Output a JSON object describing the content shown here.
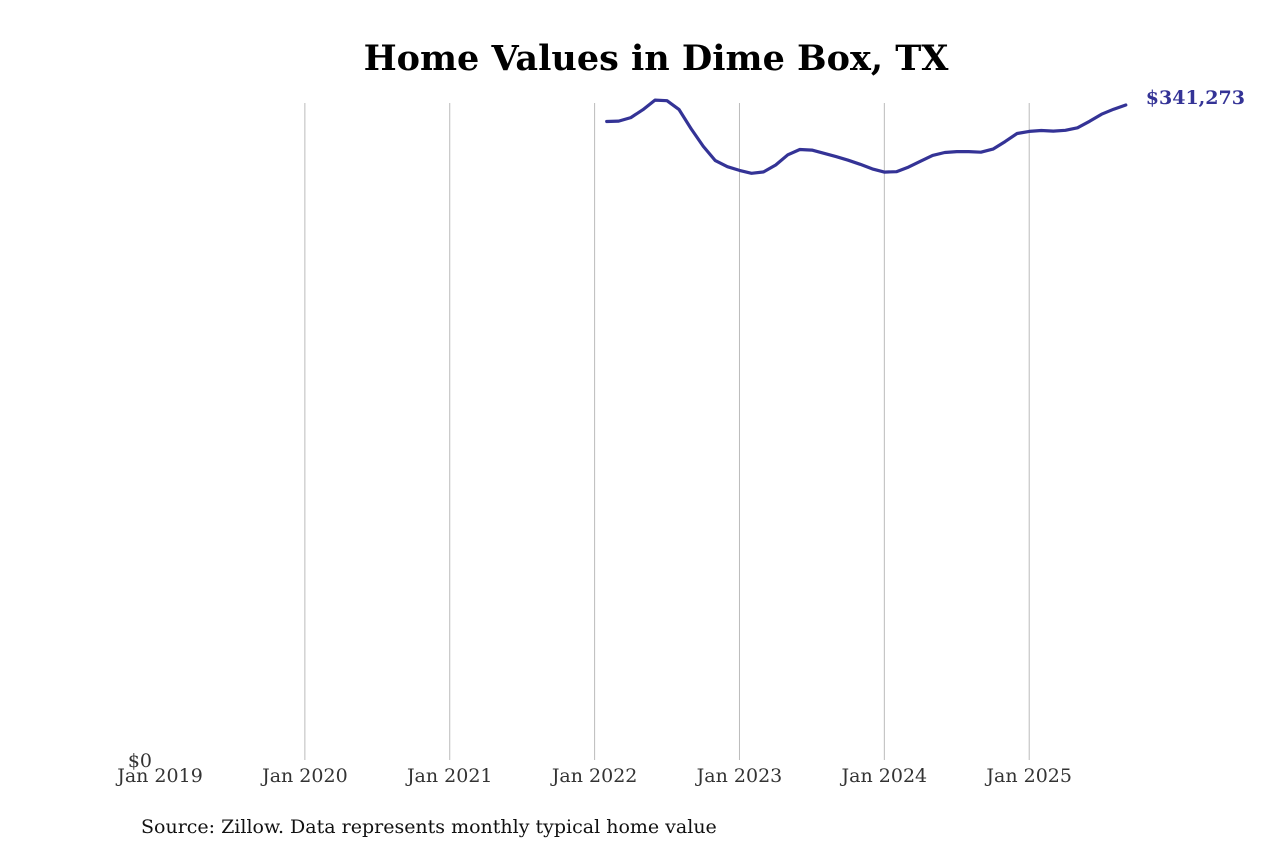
{
  "title": "Home Values in Dime Box, TX",
  "source": "Source: Zillow. Data represents monthly typical home value",
  "colors": {
    "line": "#343396",
    "grid": "#bbbbbb",
    "background": "#ffffff"
  },
  "chart_data": {
    "type": "line",
    "title": "Home Values in Dime Box, TX",
    "xlabel": "",
    "ylabel": "",
    "grid": "vertical",
    "x_ticks": [
      "Jan 2019",
      "Jan 2020",
      "Jan 2021",
      "Jan 2022",
      "Jan 2023",
      "Jan 2024",
      "Jan 2025"
    ],
    "y_ticks": [
      "$0"
    ],
    "xlim": [
      "2019-01",
      "2025-12"
    ],
    "ylim": [
      0,
      341273
    ],
    "end_label": "$341,273",
    "series": [
      {
        "x": [
          "2022-02",
          "2022-03",
          "2022-04",
          "2022-05",
          "2022-06",
          "2022-07",
          "2022-08",
          "2022-09",
          "2022-10",
          "2022-11",
          "2022-12",
          "2023-01",
          "2023-02",
          "2023-03",
          "2023-04",
          "2023-05",
          "2023-06",
          "2023-07",
          "2023-08",
          "2023-09",
          "2023-10",
          "2023-11",
          "2023-12",
          "2024-01",
          "2024-02",
          "2024-03",
          "2024-04",
          "2024-05",
          "2024-06",
          "2024-07",
          "2024-08",
          "2024-09",
          "2024-10",
          "2024-11",
          "2024-12",
          "2025-01",
          "2025-02",
          "2025-03",
          "2025-04",
          "2025-05",
          "2025-06",
          "2025-07",
          "2025-08",
          "2025-09"
        ],
        "values": [
          332700,
          332900,
          334700,
          338800,
          343800,
          343500,
          338900,
          328800,
          319700,
          312300,
          309100,
          307200,
          305700,
          306400,
          310000,
          315300,
          318100,
          317800,
          316100,
          314400,
          312500,
          310400,
          308000,
          306300,
          306500,
          308900,
          312000,
          315000,
          316500,
          317000,
          317000,
          316700,
          318300,
          322200,
          326400,
          327500,
          328000,
          327700,
          328100,
          329400,
          332800,
          336500,
          339100,
          341273
        ]
      }
    ]
  }
}
